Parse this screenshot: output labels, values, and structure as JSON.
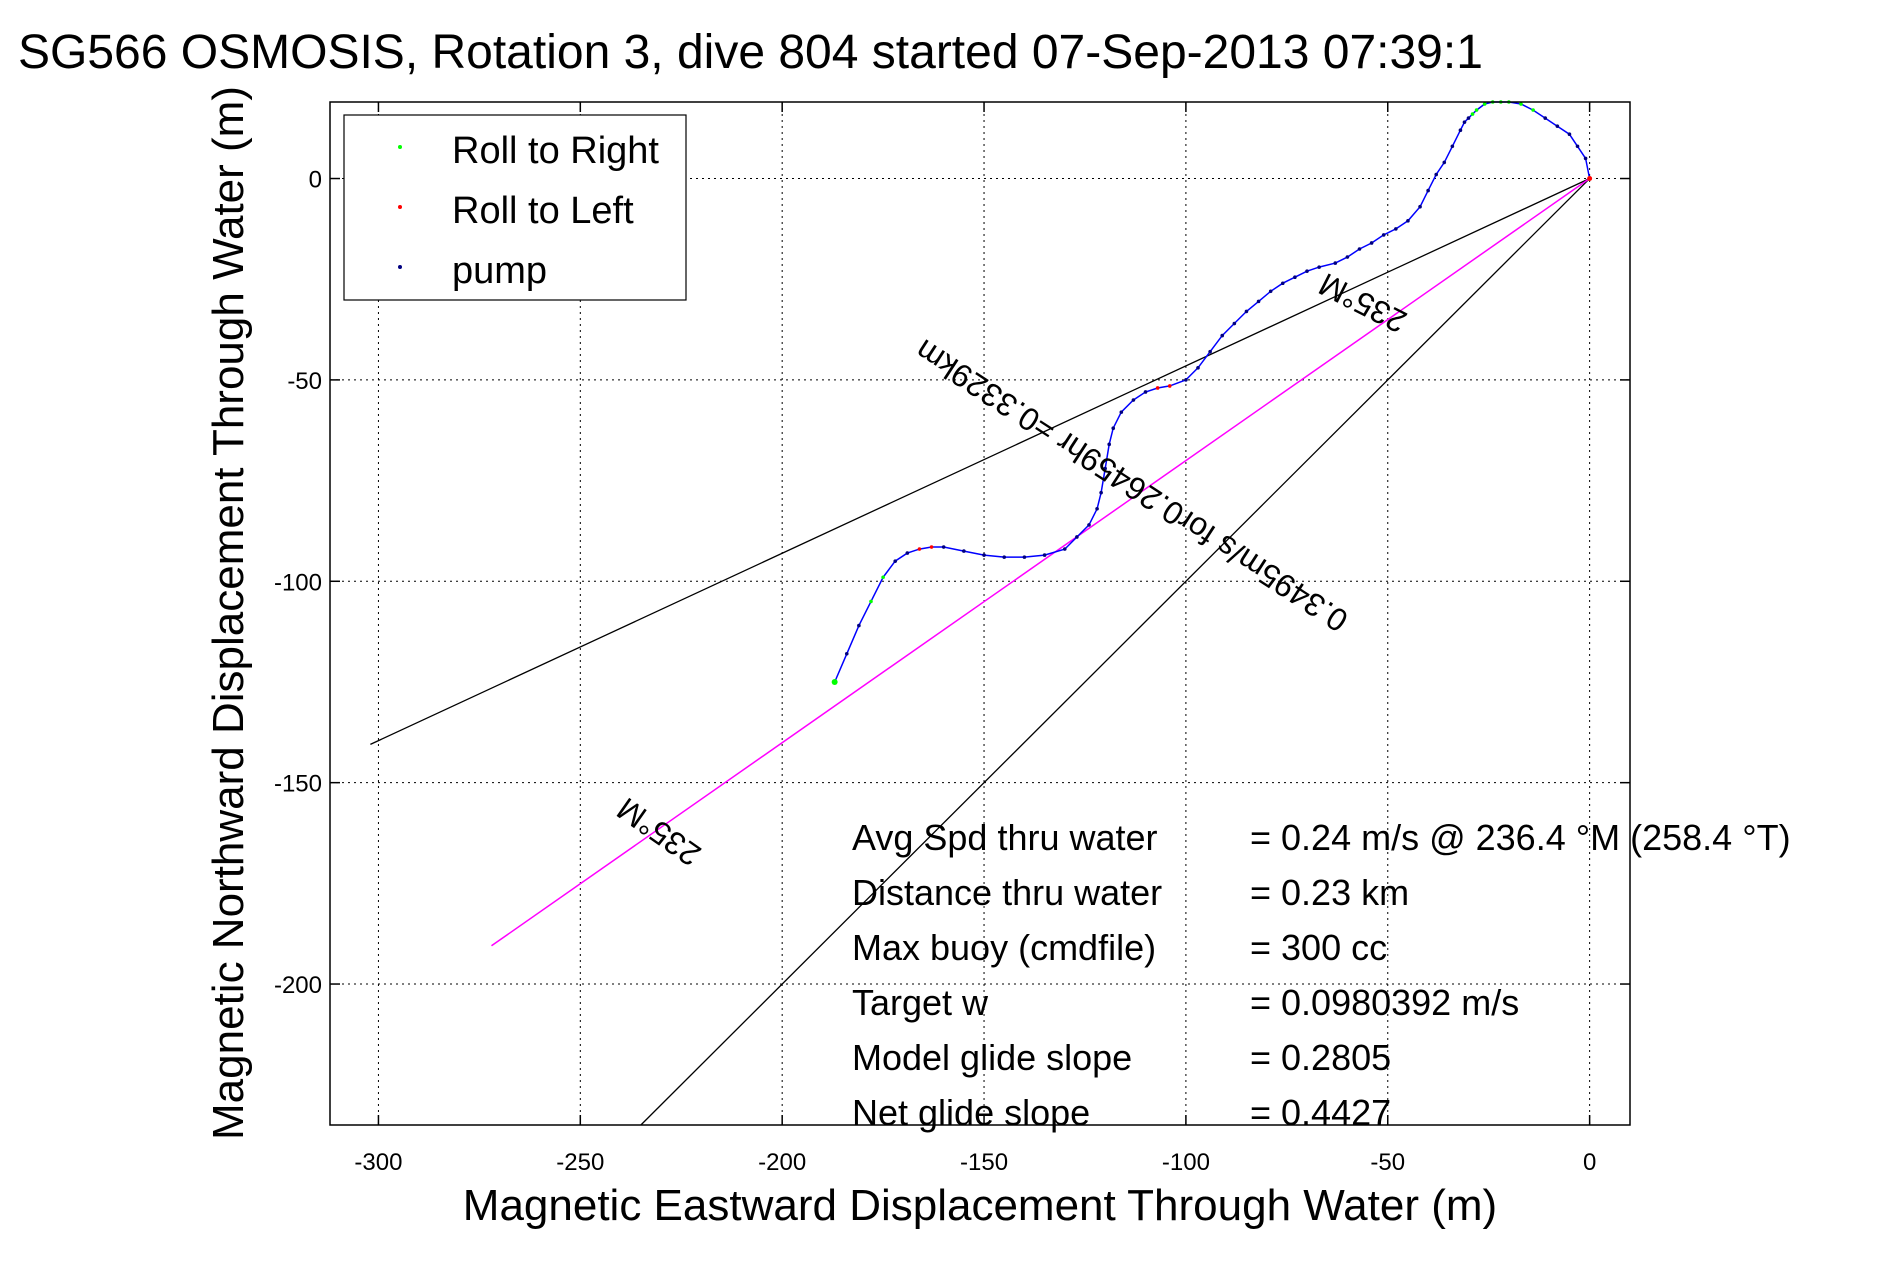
{
  "colors": {
    "background": "#ffffff",
    "axes": "#000000",
    "grid": "#000000",
    "track": "#0000ff",
    "roll_right": "#00ff00",
    "roll_left": "#ff0000",
    "pump": "#000080",
    "heading_line": "#ff00ff",
    "bracket_lines": "#000000"
  },
  "chart_data": {
    "type": "line",
    "title": "SG566 OSMOSIS, Rotation 3, dive 804 started 07-Sep-2013 07:39:1",
    "xlabel": "Magnetic Eastward Displacement Through Water (m)",
    "ylabel": "Magnetic Northward Displacement Through Water (m)",
    "xlim": [
      -312,
      10
    ],
    "ylim": [
      -235,
      19
    ],
    "xticks": [
      -300,
      -250,
      -200,
      -150,
      -100,
      -50,
      0
    ],
    "xtick_labels": [
      "-300",
      "-250",
      "-200",
      "-150",
      "-100",
      "-50",
      "0"
    ],
    "yticks": [
      0,
      -50,
      -100,
      -150,
      -200
    ],
    "ytick_labels": [
      "0",
      "-50",
      "-100",
      "-150",
      "-200"
    ],
    "grid": true,
    "legend": {
      "position": "top-left",
      "entries": [
        {
          "label": "Roll to Right",
          "color": "#00ff00"
        },
        {
          "label": "Roll to Left",
          "color": "#ff0000"
        },
        {
          "label": "pump",
          "color": "#000080"
        }
      ]
    },
    "track": {
      "x": [
        -187,
        -184,
        -181,
        -178,
        -175,
        -172,
        -169,
        -166,
        -163,
        -160,
        -155,
        -150,
        -145,
        -140,
        -135,
        -130,
        -127,
        -124,
        -122,
        -121,
        -120,
        -119,
        -118,
        -116,
        -113,
        -110,
        -107,
        -104,
        -100,
        -97,
        -94,
        -91,
        -88,
        -85,
        -82,
        -79,
        -76,
        -73,
        -70,
        -67,
        -63,
        -60,
        -57,
        -54,
        -51,
        -48,
        -45,
        -42,
        -40,
        -38,
        -36,
        -34,
        -32,
        -31,
        -30,
        -29,
        -28,
        -26,
        -24,
        -22,
        -20,
        -17,
        -14,
        -11,
        -8,
        -5,
        -3,
        -1,
        0
      ],
      "y": [
        -125,
        -118,
        -111,
        -105,
        -99,
        -95,
        -93,
        -92,
        -91.5,
        -91.5,
        -92.5,
        -93.5,
        -94,
        -94,
        -93.5,
        -92,
        -89,
        -86,
        -82,
        -78,
        -72,
        -66,
        -62,
        -58,
        -55,
        -53,
        -52,
        -51.5,
        -50,
        -47,
        -43,
        -39,
        -36,
        -33,
        -30.5,
        -28,
        -26,
        -24.5,
        -23,
        -22,
        -21,
        -19.5,
        -17.5,
        -16,
        -14,
        -12.5,
        -10.5,
        -7,
        -3,
        1,
        4,
        8,
        12,
        14,
        15,
        16,
        17,
        18.5,
        19,
        19,
        19,
        18.5,
        17,
        15,
        13,
        11,
        8,
        5,
        0
      ]
    },
    "heading_line": {
      "x": [
        0,
        -272
      ],
      "y": [
        0,
        -190.5
      ]
    },
    "bracket_lines": [
      {
        "x": [
          0,
          -302
        ],
        "y": [
          0,
          -140.5
        ]
      },
      {
        "x": [
          0,
          -235
        ],
        "y": [
          0,
          -235
        ]
      }
    ],
    "annotations": [
      {
        "text": "235°M",
        "x": -229,
        "y": -160,
        "angle": 35
      },
      {
        "text": "235°M",
        "x": -55,
        "y": -28.5,
        "angle": 27
      },
      {
        "text": "0.3495m/s for0.26459hr =0.3329km",
        "x": -112,
        "y": -74,
        "angle": 33
      }
    ],
    "stats": [
      {
        "label": "Avg Spd thru water",
        "value": "=  0.24 m/s @ 236.4 °M (258.4 °T)"
      },
      {
        "label": "Distance thru water",
        "value": "=  0.23 km"
      },
      {
        "label": "Max buoy (cmdfile)",
        "value": "= 300 cc"
      },
      {
        "label": "Target w",
        "value": "= 0.0980392 m/s"
      },
      {
        "label": "Model glide slope",
        "value": "= 0.2805"
      },
      {
        "label": "Net glide slope",
        "value": "= 0.4427"
      }
    ]
  }
}
